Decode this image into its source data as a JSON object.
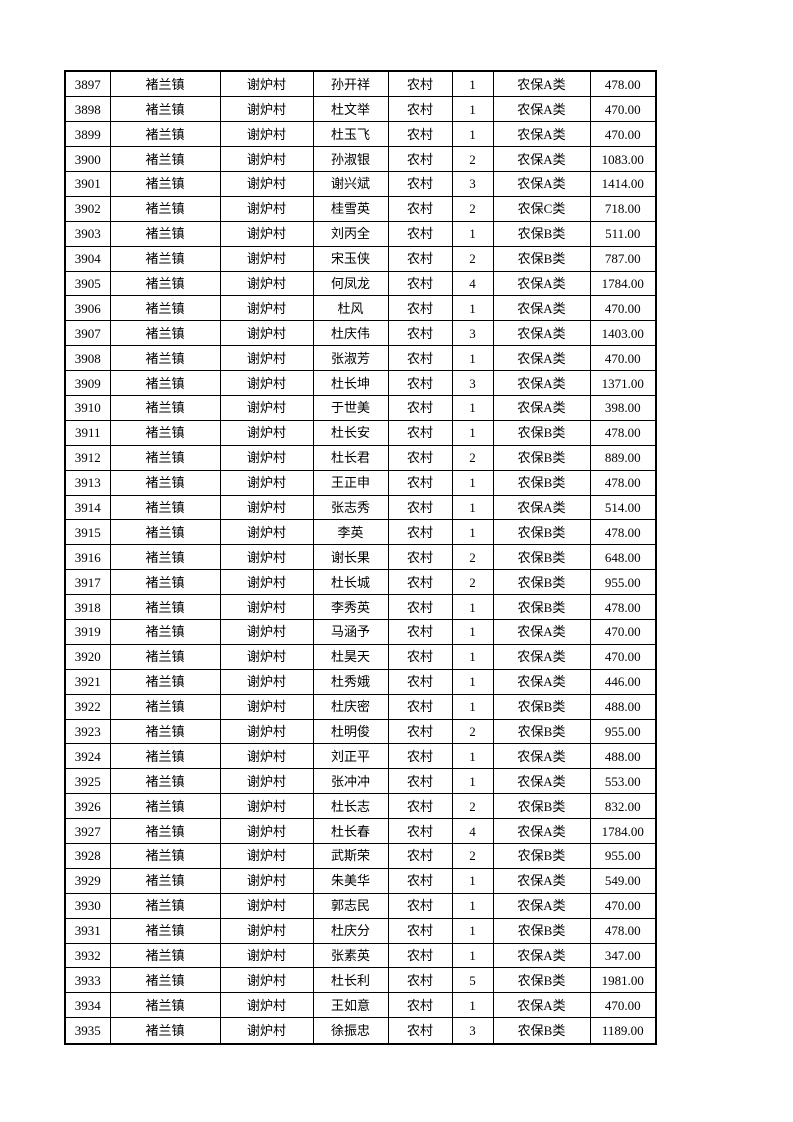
{
  "page": {
    "background_color": "#ffffff",
    "text_color": "#000000",
    "border_color": "#000000"
  },
  "table": {
    "column_keys": [
      "serial-number",
      "town",
      "village",
      "name",
      "residence-type",
      "person-count",
      "insurance-category",
      "amount"
    ],
    "rows": [
      [
        "3897",
        "褚兰镇",
        "谢炉村",
        "孙开祥",
        "农村",
        "1",
        "农保A类",
        "478.00"
      ],
      [
        "3898",
        "褚兰镇",
        "谢炉村",
        "杜文举",
        "农村",
        "1",
        "农保A类",
        "470.00"
      ],
      [
        "3899",
        "褚兰镇",
        "谢炉村",
        "杜玉飞",
        "农村",
        "1",
        "农保A类",
        "470.00"
      ],
      [
        "3900",
        "褚兰镇",
        "谢炉村",
        "孙淑银",
        "农村",
        "2",
        "农保A类",
        "1083.00"
      ],
      [
        "3901",
        "褚兰镇",
        "谢炉村",
        "谢兴斌",
        "农村",
        "3",
        "农保A类",
        "1414.00"
      ],
      [
        "3902",
        "褚兰镇",
        "谢炉村",
        "桂雪英",
        "农村",
        "2",
        "农保C类",
        "718.00"
      ],
      [
        "3903",
        "褚兰镇",
        "谢炉村",
        "刘丙全",
        "农村",
        "1",
        "农保B类",
        "511.00"
      ],
      [
        "3904",
        "褚兰镇",
        "谢炉村",
        "宋玉侠",
        "农村",
        "2",
        "农保B类",
        "787.00"
      ],
      [
        "3905",
        "褚兰镇",
        "谢炉村",
        "何凤龙",
        "农村",
        "4",
        "农保A类",
        "1784.00"
      ],
      [
        "3906",
        "褚兰镇",
        "谢炉村",
        "杜风",
        "农村",
        "1",
        "农保A类",
        "470.00"
      ],
      [
        "3907",
        "褚兰镇",
        "谢炉村",
        "杜庆伟",
        "农村",
        "3",
        "农保A类",
        "1403.00"
      ],
      [
        "3908",
        "褚兰镇",
        "谢炉村",
        "张淑芳",
        "农村",
        "1",
        "农保A类",
        "470.00"
      ],
      [
        "3909",
        "褚兰镇",
        "谢炉村",
        "杜长坤",
        "农村",
        "3",
        "农保A类",
        "1371.00"
      ],
      [
        "3910",
        "褚兰镇",
        "谢炉村",
        "于世美",
        "农村",
        "1",
        "农保A类",
        "398.00"
      ],
      [
        "3911",
        "褚兰镇",
        "谢炉村",
        "杜长安",
        "农村",
        "1",
        "农保B类",
        "478.00"
      ],
      [
        "3912",
        "褚兰镇",
        "谢炉村",
        "杜长君",
        "农村",
        "2",
        "农保B类",
        "889.00"
      ],
      [
        "3913",
        "褚兰镇",
        "谢炉村",
        "王正申",
        "农村",
        "1",
        "农保B类",
        "478.00"
      ],
      [
        "3914",
        "褚兰镇",
        "谢炉村",
        "张志秀",
        "农村",
        "1",
        "农保A类",
        "514.00"
      ],
      [
        "3915",
        "褚兰镇",
        "谢炉村",
        "李英",
        "农村",
        "1",
        "农保B类",
        "478.00"
      ],
      [
        "3916",
        "褚兰镇",
        "谢炉村",
        "谢长果",
        "农村",
        "2",
        "农保B类",
        "648.00"
      ],
      [
        "3917",
        "褚兰镇",
        "谢炉村",
        "杜长城",
        "农村",
        "2",
        "农保B类",
        "955.00"
      ],
      [
        "3918",
        "褚兰镇",
        "谢炉村",
        "李秀英",
        "农村",
        "1",
        "农保B类",
        "478.00"
      ],
      [
        "3919",
        "褚兰镇",
        "谢炉村",
        "马涵予",
        "农村",
        "1",
        "农保A类",
        "470.00"
      ],
      [
        "3920",
        "褚兰镇",
        "谢炉村",
        "杜昊天",
        "农村",
        "1",
        "农保A类",
        "470.00"
      ],
      [
        "3921",
        "褚兰镇",
        "谢炉村",
        "杜秀娥",
        "农村",
        "1",
        "农保A类",
        "446.00"
      ],
      [
        "3922",
        "褚兰镇",
        "谢炉村",
        "杜庆密",
        "农村",
        "1",
        "农保B类",
        "488.00"
      ],
      [
        "3923",
        "褚兰镇",
        "谢炉村",
        "杜明俊",
        "农村",
        "2",
        "农保B类",
        "955.00"
      ],
      [
        "3924",
        "褚兰镇",
        "谢炉村",
        "刘正平",
        "农村",
        "1",
        "农保A类",
        "488.00"
      ],
      [
        "3925",
        "褚兰镇",
        "谢炉村",
        "张冲冲",
        "农村",
        "1",
        "农保A类",
        "553.00"
      ],
      [
        "3926",
        "褚兰镇",
        "谢炉村",
        "杜长志",
        "农村",
        "2",
        "农保B类",
        "832.00"
      ],
      [
        "3927",
        "褚兰镇",
        "谢炉村",
        "杜长春",
        "农村",
        "4",
        "农保A类",
        "1784.00"
      ],
      [
        "3928",
        "褚兰镇",
        "谢炉村",
        "武斯荣",
        "农村",
        "2",
        "农保B类",
        "955.00"
      ],
      [
        "3929",
        "褚兰镇",
        "谢炉村",
        "朱美华",
        "农村",
        "1",
        "农保A类",
        "549.00"
      ],
      [
        "3930",
        "褚兰镇",
        "谢炉村",
        "郭志民",
        "农村",
        "1",
        "农保A类",
        "470.00"
      ],
      [
        "3931",
        "褚兰镇",
        "谢炉村",
        "杜庆分",
        "农村",
        "1",
        "农保B类",
        "478.00"
      ],
      [
        "3932",
        "褚兰镇",
        "谢炉村",
        "张素英",
        "农村",
        "1",
        "农保A类",
        "347.00"
      ],
      [
        "3933",
        "褚兰镇",
        "谢炉村",
        "杜长利",
        "农村",
        "5",
        "农保B类",
        "1981.00"
      ],
      [
        "3934",
        "褚兰镇",
        "谢炉村",
        "王如意",
        "农村",
        "1",
        "农保A类",
        "470.00"
      ],
      [
        "3935",
        "褚兰镇",
        "谢炉村",
        "徐振忠",
        "农村",
        "3",
        "农保B类",
        "1189.00"
      ]
    ]
  }
}
